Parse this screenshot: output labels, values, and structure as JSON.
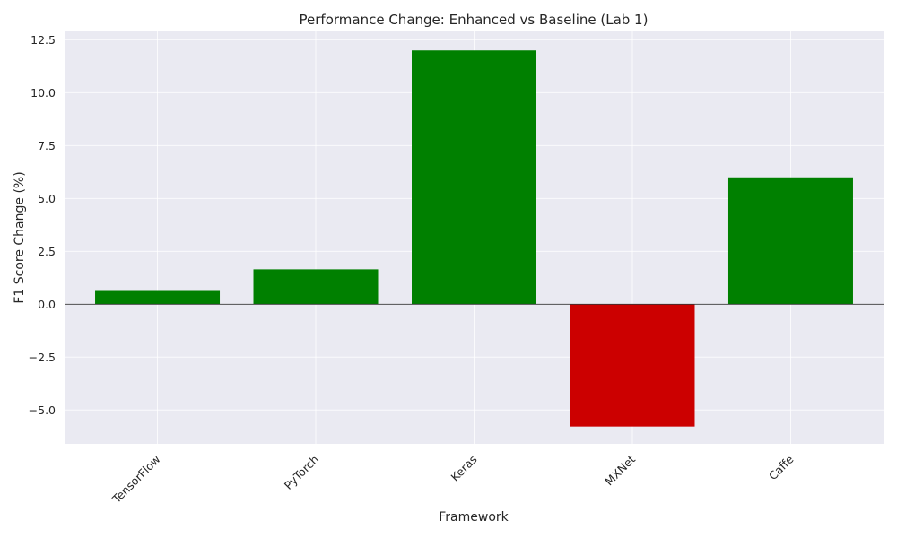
{
  "chart_data": {
    "type": "bar",
    "title": "Performance Change: Enhanced vs Baseline (Lab 1)",
    "xlabel": "Framework",
    "ylabel": "F1 Score Change (%)",
    "categories": [
      "TensorFlow",
      "PyTorch",
      "Keras",
      "MXNet",
      "Caffe"
    ],
    "values": [
      0.67,
      1.65,
      12.0,
      -5.78,
      6.0
    ],
    "ylim": [
      -6.6,
      12.9
    ],
    "yticks": [
      -5.0,
      -2.5,
      0.0,
      2.5,
      5.0,
      7.5,
      10.0,
      12.5
    ],
    "ytick_labels": [
      "−5.0",
      "−2.5",
      "0.0",
      "2.5",
      "5.0",
      "7.5",
      "10.0",
      "12.5"
    ],
    "grid": true,
    "zero_line": true,
    "xtick_rotation_deg": 45,
    "colors": {
      "positive": "#008000",
      "negative": "#cc0000",
      "plot_background": "#eaeaf2",
      "grid": "#ffffff",
      "zero_line": "#333333",
      "text": "#262626"
    }
  }
}
